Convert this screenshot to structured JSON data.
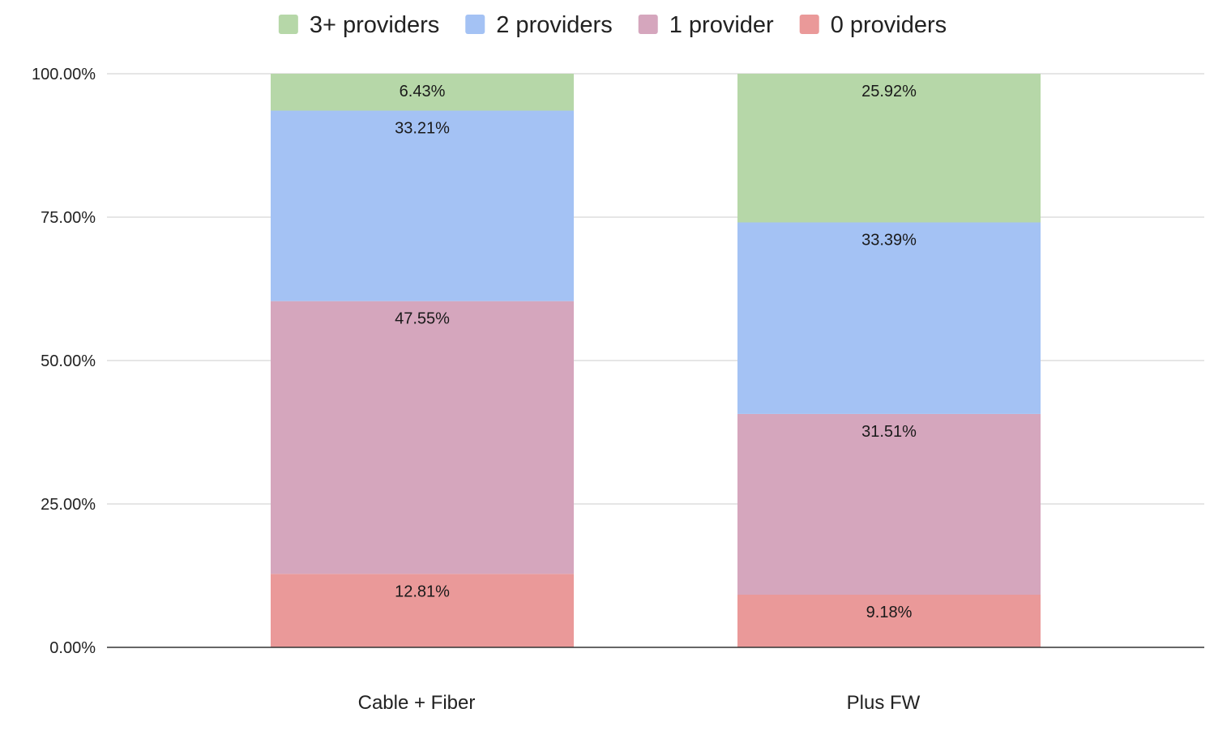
{
  "chart_data": {
    "type": "bar",
    "stacked": true,
    "title": "",
    "xlabel": "",
    "ylabel": "",
    "categories": [
      "Cable + Fiber",
      "Plus FW"
    ],
    "series": [
      {
        "name": "0 providers",
        "color": "#ea9999",
        "values": [
          12.81,
          9.18
        ],
        "labels": [
          "12.81%",
          "9.18%"
        ]
      },
      {
        "name": "1 provider",
        "color": "#d5a6bd",
        "values": [
          47.55,
          31.51
        ],
        "labels": [
          "47.55%",
          "31.51%"
        ]
      },
      {
        "name": "2 providers",
        "color": "#a4c2f4",
        "values": [
          33.21,
          33.39
        ],
        "labels": [
          "33.21%",
          "33.39%"
        ]
      },
      {
        "name": "3+ providers",
        "color": "#b6d7a8",
        "values": [
          6.43,
          25.92
        ],
        "labels": [
          "6.43%",
          "25.92%"
        ]
      }
    ],
    "legend_order": [
      "3+ providers",
      "2 providers",
      "1 provider",
      "0 providers"
    ],
    "legend_position": "top-center",
    "ylim": [
      0,
      100
    ],
    "yticks": [
      0,
      25,
      50,
      75,
      100
    ],
    "ytick_labels": [
      "0.00%",
      "25.00%",
      "50.00%",
      "75.00%",
      "100.00%"
    ],
    "grid": true
  }
}
